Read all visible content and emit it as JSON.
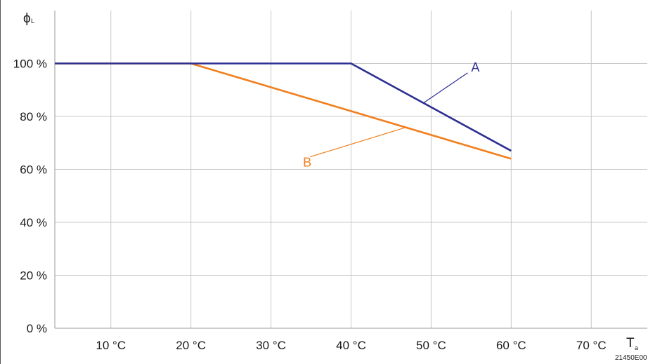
{
  "chart_data": {
    "type": "line",
    "x_ticks": [
      "10 °C",
      "20 °C",
      "30 °C",
      "40 °C",
      "50 °C",
      "60 °C",
      "70 °C"
    ],
    "x_tick_values": [
      10,
      20,
      30,
      40,
      50,
      60,
      70
    ],
    "y_ticks": [
      "0 %",
      "20 %",
      "40 %",
      "60 %",
      "80 %",
      "100 %"
    ],
    "y_tick_values": [
      0,
      20,
      40,
      60,
      80,
      100
    ],
    "xlim": [
      3,
      77
    ],
    "ylim": [
      0,
      120
    ],
    "grid": true,
    "ylabel": {
      "main": "ϕ",
      "sub": "L"
    },
    "xlabel": {
      "main": "T",
      "sub": "a"
    },
    "figure_code": "21450E00",
    "series": [
      {
        "name": "A",
        "color": "#2e3092",
        "x": [
          3,
          40,
          60
        ],
        "y": [
          100,
          100,
          67
        ],
        "label_anchor": [
          49,
          85
        ],
        "label_pos": [
          55,
          97
        ]
      },
      {
        "name": "B",
        "color": "#f07f1e",
        "x": [
          3,
          20,
          60
        ],
        "y": [
          100,
          100,
          64
        ],
        "label_anchor": [
          47,
          76
        ],
        "label_pos": [
          34,
          61
        ]
      }
    ]
  }
}
